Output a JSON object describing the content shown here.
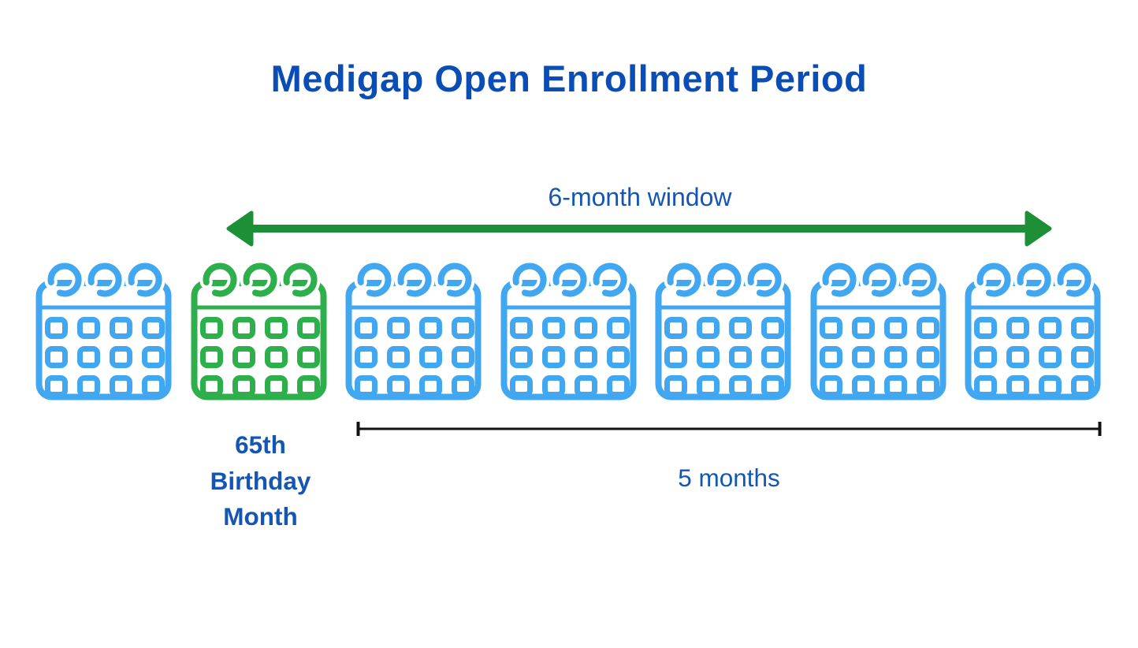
{
  "title": {
    "text": "Medigap Open Enrollment Period"
  },
  "window_arrow": {
    "label": "6-month window"
  },
  "calendar_row": {
    "calendars": [
      {
        "id": "month-1",
        "variant": "blue"
      },
      {
        "id": "month-2-birthday",
        "variant": "green"
      },
      {
        "id": "month-3",
        "variant": "blue"
      },
      {
        "id": "month-4",
        "variant": "blue"
      },
      {
        "id": "month-5",
        "variant": "blue"
      },
      {
        "id": "month-6",
        "variant": "blue"
      },
      {
        "id": "month-7",
        "variant": "blue"
      }
    ]
  },
  "birthday_label": {
    "lines": [
      "65th",
      "Birthday",
      "Month"
    ]
  },
  "duration_bracket": {
    "label": "5 months"
  },
  "colors": {
    "title_blue": "#0a4db5",
    "label_blue": "#1556b5",
    "calendar_blue": "#41a7f0",
    "calendar_green": "#2db04b",
    "arrow_green": "#1d8f36",
    "bracket_black": "#111111",
    "background": "#ffffff"
  }
}
